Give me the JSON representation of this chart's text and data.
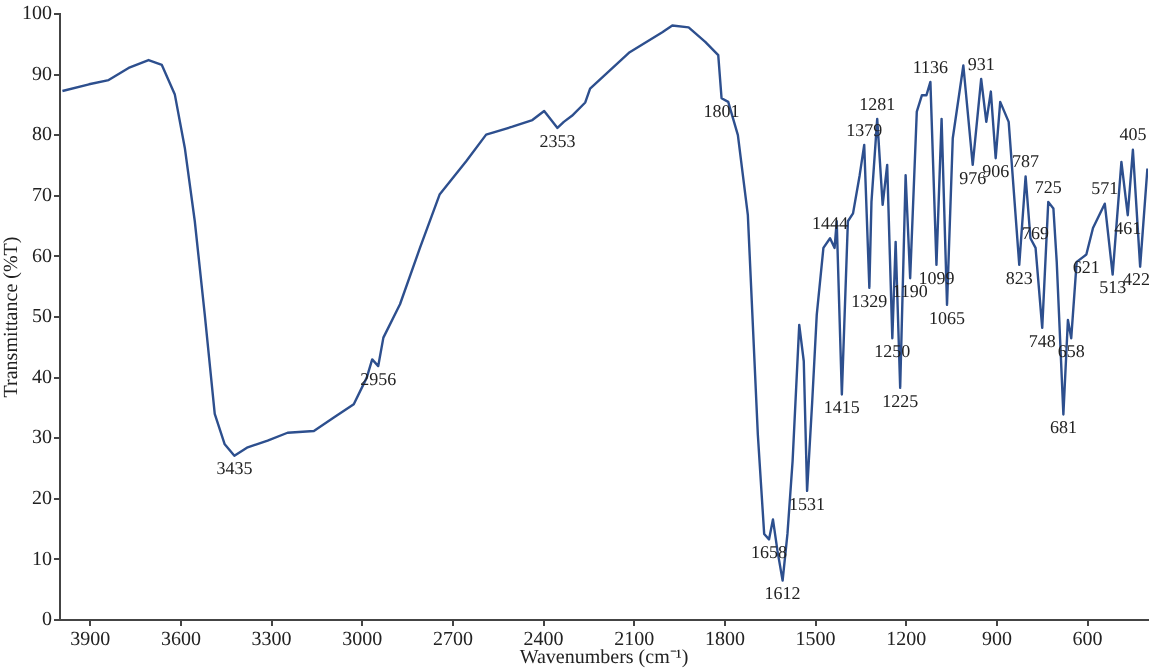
{
  "chart_data": {
    "type": "line",
    "xlabel": "Wavenumbers (cm⁻¹)",
    "ylabel": "Transmittance (%T)",
    "xlim": [
      4000,
      400
    ],
    "xticks": [
      3900,
      3600,
      3300,
      3000,
      2700,
      2400,
      2100,
      1800,
      1500,
      1200,
      900,
      600
    ],
    "ylim": [
      0,
      100
    ],
    "yticks": [
      0,
      10,
      20,
      30,
      40,
      50,
      60,
      70,
      80,
      90,
      100
    ],
    "grid": false,
    "legend": false,
    "marker": "none",
    "line_style": "solid",
    "series": [
      {
        "color": "#2d4f8e",
        "x": [
          3992,
          3904,
          3839,
          3773,
          3707,
          3663,
          3620,
          3587,
          3554,
          3521,
          3488,
          3455,
          3423,
          3379,
          3313,
          3247,
          3160,
          3094,
          3028,
          2985,
          2967,
          2947,
          2930,
          2875,
          2809,
          2744,
          2656,
          2590,
          2503,
          2437,
          2398,
          2354,
          2333,
          2306,
          2262,
          2246,
          2115,
          2007,
          1974,
          1920,
          1865,
          1822,
          1811,
          1789,
          1757,
          1724,
          1691,
          1670,
          1654,
          1641,
          1626,
          1609,
          1593,
          1576,
          1554,
          1539,
          1528,
          1511,
          1496,
          1474,
          1452,
          1437,
          1430,
          1413,
          1393,
          1376,
          1354,
          1339,
          1322,
          1315,
          1296,
          1278,
          1263,
          1246,
          1235,
          1220,
          1202,
          1187,
          1165,
          1148,
          1133,
          1120,
          1100,
          1083,
          1065,
          1046,
          1011,
          980,
          952,
          935,
          920,
          904,
          889,
          861,
          826,
          805,
          789,
          772,
          750,
          730,
          713,
          702,
          680,
          665,
          654,
          636,
          604,
          582,
          543,
          517,
          488,
          467,
          450,
          426,
          402
        ],
        "values": [
          87.3,
          88.4,
          89.1,
          91.1,
          92.4,
          91.6,
          86.7,
          77.9,
          65.8,
          50.4,
          34,
          29,
          27.1,
          28.5,
          29.6,
          30.9,
          31.2,
          33.4,
          35.6,
          40,
          43,
          41.9,
          46.6,
          52.1,
          61.4,
          70.2,
          75.7,
          80.1,
          81.4,
          82.5,
          84,
          81.2,
          82.2,
          83.2,
          85.4,
          87.7,
          93.7,
          97,
          98.1,
          97.8,
          95.4,
          93.2,
          86.1,
          85.5,
          80,
          66.8,
          30.6,
          14.2,
          13.3,
          16.6,
          11.4,
          6.5,
          14.2,
          26.2,
          48.7,
          42.7,
          21.3,
          36.1,
          50.4,
          61.4,
          63,
          61.4,
          65.8,
          37.2,
          65.8,
          67.1,
          73.4,
          78.4,
          54.8,
          69,
          82.7,
          68.5,
          75.1,
          46.5,
          62.4,
          38.3,
          73.4,
          56.4,
          83.9,
          86.6,
          86.6,
          88.8,
          58.6,
          82.7,
          52,
          79.5,
          91.5,
          75.1,
          89.3,
          82.2,
          87.2,
          76.2,
          85.5,
          82.2,
          58.6,
          73.2,
          63,
          61.4,
          48.2,
          69,
          67.9,
          59.1,
          33.9,
          49.5,
          46.5,
          59.1,
          60.3,
          64.7,
          68.7,
          57,
          75.6,
          66.8,
          77.6,
          58.3,
          74.5
        ]
      }
    ],
    "annotations": [
      {
        "text": "3435",
        "x": 3423,
        "y": 27.1
      },
      {
        "text": "2956",
        "x": 2947,
        "y": 41.9
      },
      {
        "text": "2353",
        "x": 2354,
        "y": 81.2
      },
      {
        "text": "1801",
        "x": 1811,
        "y": 86.1
      },
      {
        "text": "1658",
        "x": 1654,
        "y": 13.3
      },
      {
        "text": "1612",
        "x": 1609,
        "y": 6.5
      },
      {
        "text": "1531",
        "x": 1528,
        "y": 21.3
      },
      {
        "text": "1444",
        "x": 1452,
        "y": 63
      },
      {
        "text": "1379",
        "x": 1339,
        "y": 78.4
      },
      {
        "text": "1281",
        "x": 1296,
        "y": 82.7
      },
      {
        "text": "1329",
        "x": 1322,
        "y": 54.8
      },
      {
        "text": "1415",
        "x": 1413,
        "y": 37.2
      },
      {
        "text": "1250",
        "x": 1246,
        "y": 46.5
      },
      {
        "text": "1225",
        "x": 1220,
        "y": 38.3
      },
      {
        "text": "1099",
        "x": 1100,
        "y": 58.6
      },
      {
        "text": "1190",
        "x": 1187,
        "y": 56.4
      },
      {
        "text": "1136",
        "x": 1120,
        "y": 88.8
      },
      {
        "text": "1065",
        "x": 1065,
        "y": 52
      },
      {
        "text": "976",
        "x": 980,
        "y": 75.1
      },
      {
        "text": "906",
        "x": 904,
        "y": 76.2
      },
      {
        "text": "931",
        "x": 952,
        "y": 89.3
      },
      {
        "text": "787",
        "x": 805,
        "y": 73.2
      },
      {
        "text": "725",
        "x": 730,
        "y": 69
      },
      {
        "text": "823",
        "x": 826,
        "y": 58.6
      },
      {
        "text": "769",
        "x": 772,
        "y": 61.4
      },
      {
        "text": "748",
        "x": 750,
        "y": 48.2
      },
      {
        "text": "658",
        "x": 654,
        "y": 46.5
      },
      {
        "text": "681",
        "x": 680,
        "y": 33.9
      },
      {
        "text": "571",
        "x": 543,
        "y": 68.7
      },
      {
        "text": "621",
        "x": 604,
        "y": 60.3
      },
      {
        "text": "513",
        "x": 517,
        "y": 57
      },
      {
        "text": "461",
        "x": 467,
        "y": 66.8
      },
      {
        "text": "405",
        "x": 450,
        "y": 77.6
      },
      {
        "text": "422",
        "x": 426,
        "y": 58.3
      }
    ]
  }
}
